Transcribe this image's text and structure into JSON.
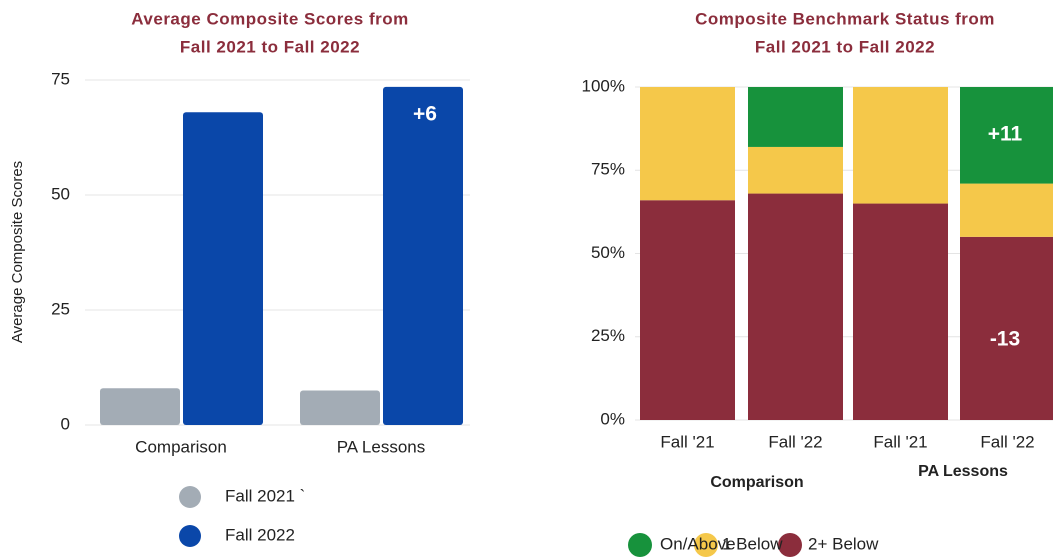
{
  "chart_data": [
    {
      "type": "bar",
      "title": [
        "Average Composite Scores from",
        "Fall 2021 to Fall 2022"
      ],
      "y_label": "Average Composite Scores",
      "categories": [
        "Comparison",
        "PA Lessons"
      ],
      "series": [
        {
          "name": "Fall 2021 `",
          "color": "#a3acb5",
          "values": [
            8,
            7.5
          ]
        },
        {
          "name": "Fall 2022",
          "color": "#0a47a9",
          "values": [
            68,
            73.5
          ]
        }
      ],
      "ylim": [
        0,
        75
      ],
      "yticks": [
        0,
        25,
        50,
        75
      ],
      "grid": true,
      "annotations": [
        "+6"
      ]
    },
    {
      "type": "bar",
      "stacked": true,
      "title": [
        "Composite Benchmark Status from",
        "Fall 2021 to Fall 2022"
      ],
      "categories": [
        "Fall '21",
        "Fall '22",
        "Fall '21",
        "Fall '22"
      ],
      "groups": [
        "Comparison",
        "PA Lessons"
      ],
      "series": [
        {
          "name": "2+ Below",
          "color": "#8b2d3c",
          "values": [
            66,
            68,
            65,
            55
          ]
        },
        {
          "name": "1 Below",
          "color": "#f5c84a",
          "values": [
            34,
            14,
            35,
            16
          ]
        },
        {
          "name": "On/Above",
          "color": "#17923c",
          "values": [
            0,
            18,
            0,
            29
          ]
        }
      ],
      "ylim": [
        0,
        100
      ],
      "yticks": [
        {
          "value": 0,
          "label": "0%"
        },
        {
          "value": 25,
          "label": "25%"
        },
        {
          "value": 50,
          "label": "50%"
        },
        {
          "value": 75,
          "label": "75%"
        },
        {
          "value": 100,
          "label": "100%"
        }
      ],
      "grid": true,
      "annotations": [
        "+11",
        "-13"
      ]
    }
  ]
}
